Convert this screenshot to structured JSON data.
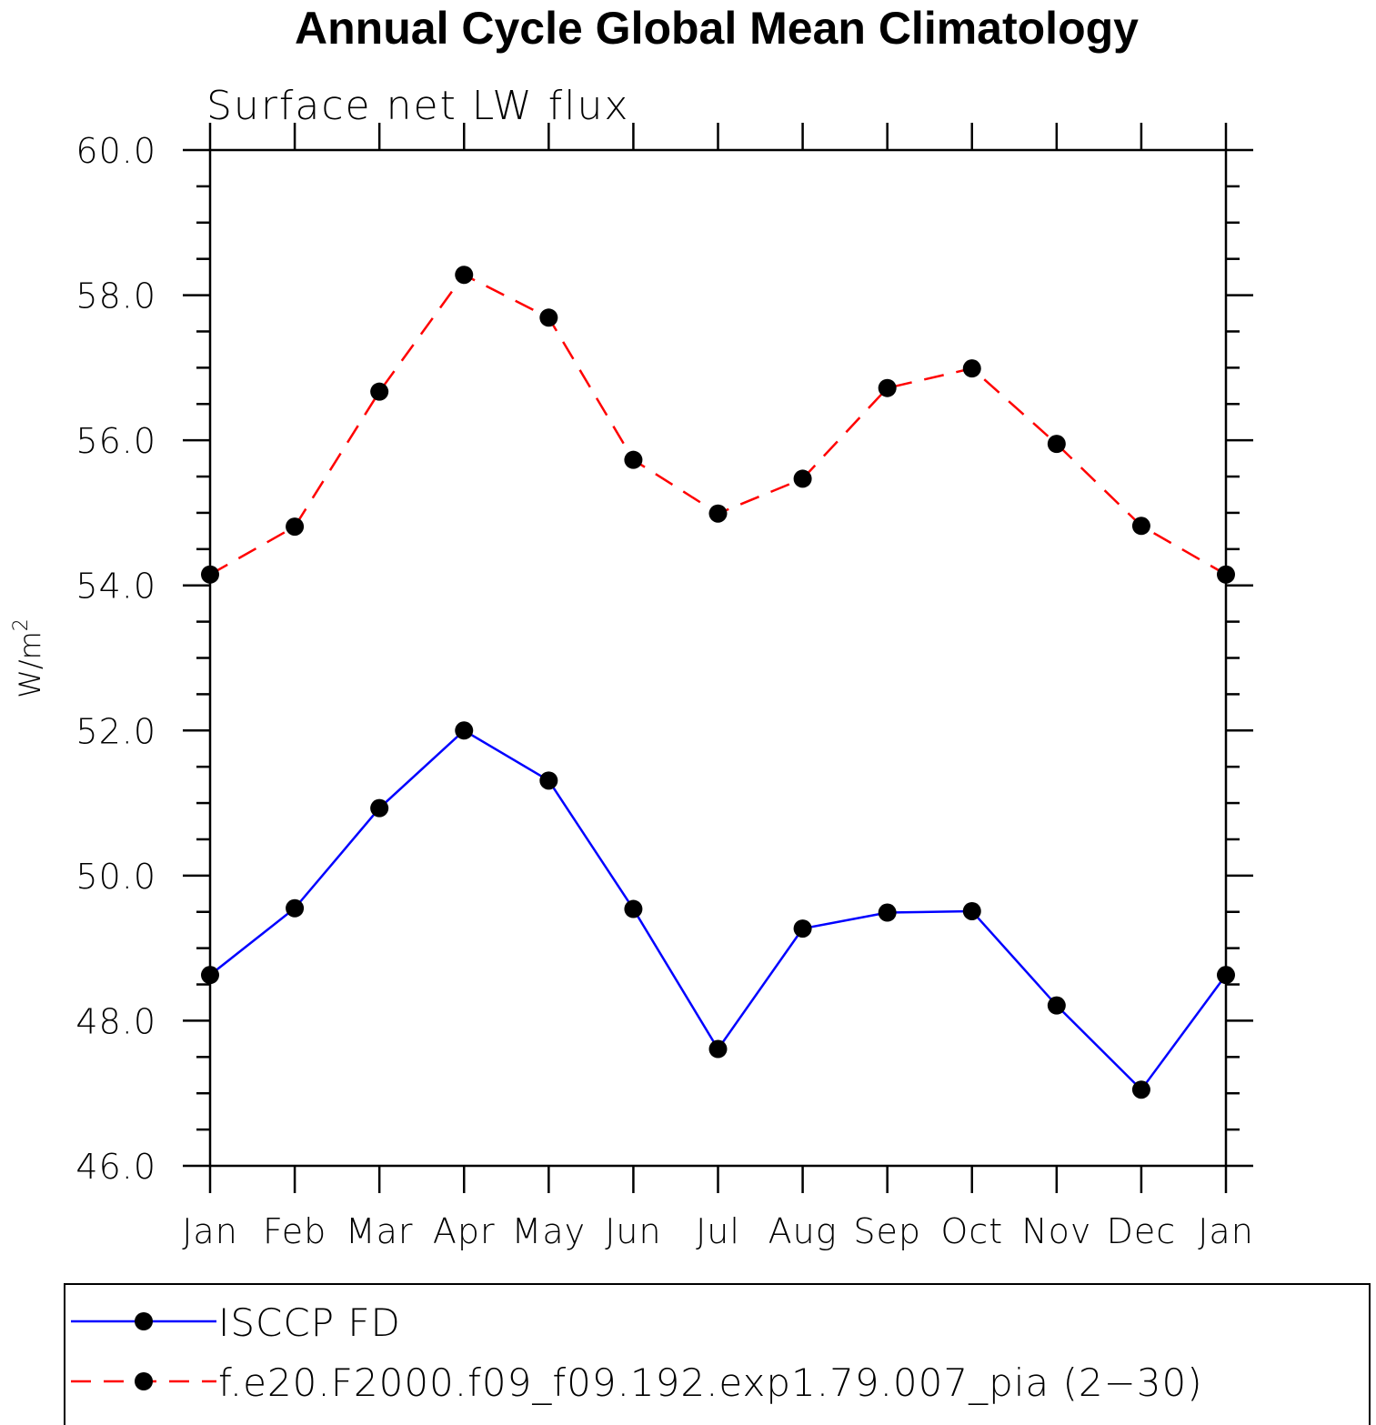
{
  "chart_data": {
    "type": "line",
    "title": "Annual Cycle Global Mean Climatology",
    "subtitle": "Surface net LW flux",
    "ylabel": "W/m",
    "ylabel_superscript": "2",
    "categories": [
      "Jan",
      "Feb",
      "Mar",
      "Apr",
      "May",
      "Jun",
      "Jul",
      "Aug",
      "Sep",
      "Oct",
      "Nov",
      "Dec",
      "Jan"
    ],
    "ylim": [
      46.0,
      60.0
    ],
    "yticks": [
      "46.0",
      "48.0",
      "50.0",
      "52.0",
      "54.0",
      "56.0",
      "58.0",
      "60.0"
    ],
    "grid": false,
    "legend_position": "bottom",
    "series": [
      {
        "name": "ISCCP FD",
        "color": "#0000ff",
        "dash": "solid",
        "values": [
          48.63,
          49.55,
          50.93,
          52.0,
          51.31,
          49.54,
          47.61,
          49.27,
          49.49,
          49.51,
          48.21,
          47.05,
          48.63
        ]
      },
      {
        "name": "f.e20.F2000.f09_f09.192.exp1.79.007_pia (2−30)",
        "color": "#ff0000",
        "dash": "dashed",
        "values": [
          54.15,
          54.81,
          56.67,
          58.28,
          57.69,
          55.73,
          54.99,
          55.47,
          56.72,
          56.99,
          55.95,
          54.82,
          54.15
        ]
      }
    ],
    "marker_color": "#000000"
  }
}
